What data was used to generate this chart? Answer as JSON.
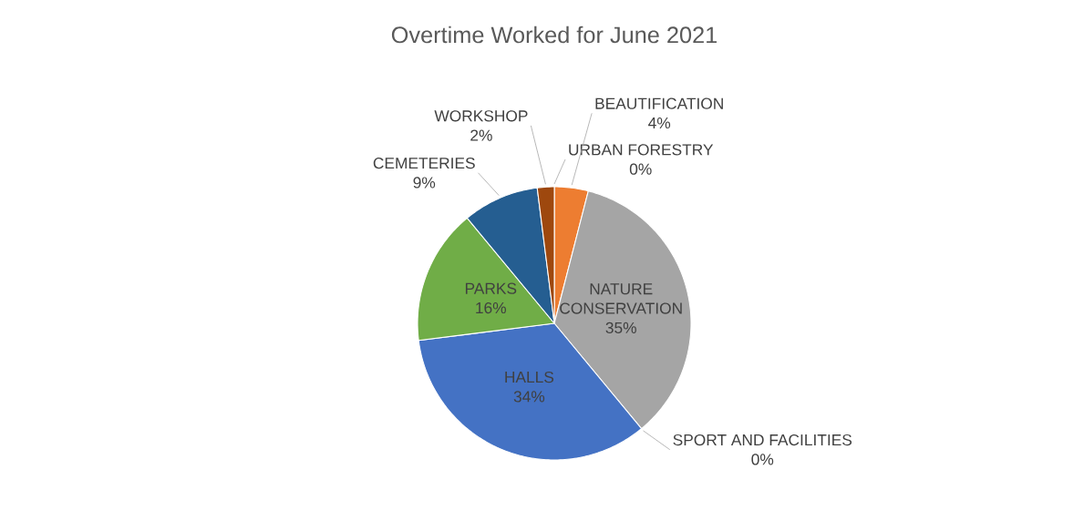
{
  "chart_data": {
    "type": "pie",
    "title": "Overtime Worked for June 2021",
    "categories": [
      "URBAN FORESTRY",
      "BEAUTIFICATION",
      "NATURE CONSERVATION",
      "SPORT AND FACILITIES",
      "HALLS",
      "PARKS",
      "CEMETERIES",
      "WORKSHOP"
    ],
    "values": [
      0,
      4,
      35,
      0,
      34,
      16,
      9,
      2
    ],
    "value_labels": [
      "0%",
      "4%",
      "35%",
      "0%",
      "34%",
      "16%",
      "9%",
      "2%"
    ],
    "colors": [
      "#5b9bd5",
      "#ed7d31",
      "#a5a5a5",
      "#ffc000",
      "#4472c4",
      "#70ad47",
      "#255e91",
      "#9e480e"
    ]
  }
}
